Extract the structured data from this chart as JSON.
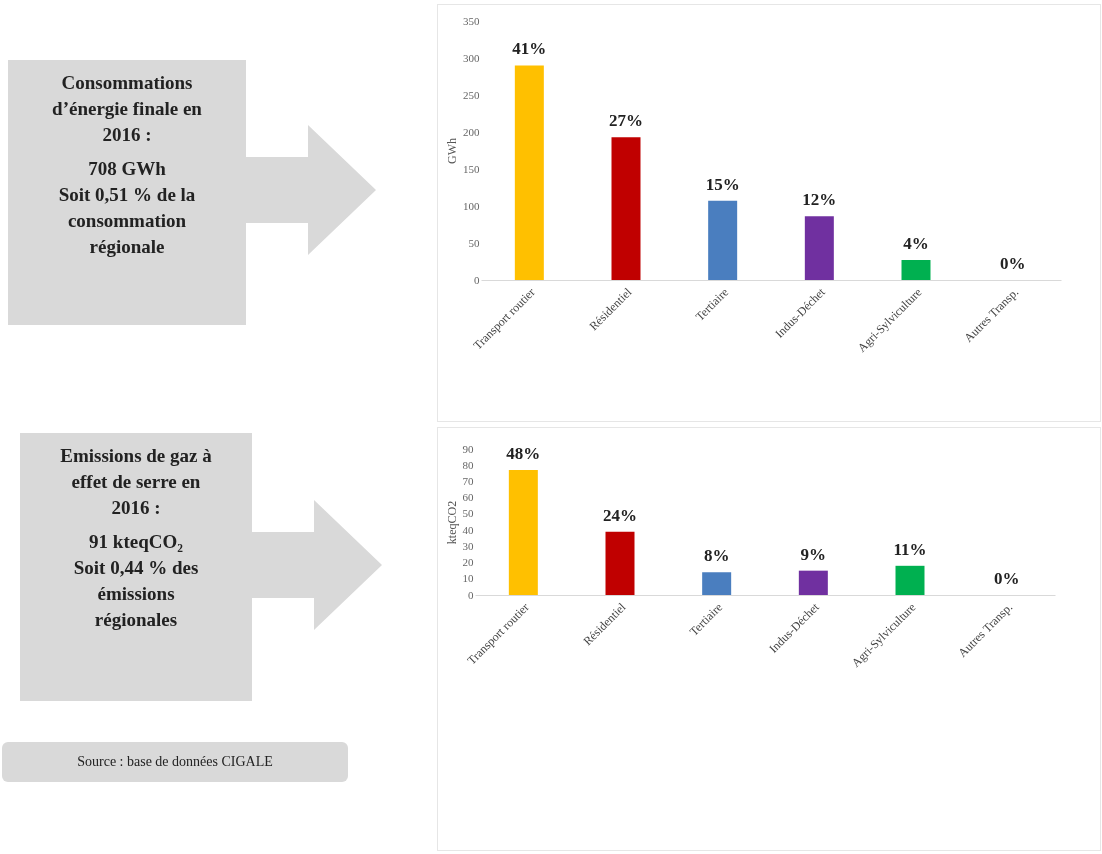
{
  "chart_data": [
    {
      "type": "bar",
      "ylabel": "GWh",
      "categories": [
        "Transport routier",
        "Résidentiel",
        "Tertiaire",
        "Indus-Déchet",
        "Agri-Sylviculture",
        "Autres Transp."
      ],
      "values": [
        290,
        193,
        107,
        86,
        27,
        0
      ],
      "colors": [
        "#ffc000",
        "#c00000",
        "#4a7ebf",
        "#7030a0",
        "#00b050",
        "#a5a5a5"
      ],
      "ylim": [
        0,
        350
      ],
      "yticks": [
        0,
        50,
        100,
        150,
        200,
        250,
        300,
        350
      ],
      "annotations": [
        "Consommations d’énergie finale en 2016 :",
        "708 GWh",
        "Soit 0,51 % de la consommation régionale",
        "Source : base de données CIGALE",
        {
          "text": "41%",
          "x": "Transport routier",
          "y": 290
        },
        {
          "text": "27%",
          "x": "Résidentiel",
          "y": 193
        },
        {
          "text": "15%",
          "x": "Tertiaire",
          "y": 107
        },
        {
          "text": "12%",
          "x": "Indus-Déchet",
          "y": 86
        },
        {
          "text": "4%",
          "x": "Agri-Sylviculture",
          "y": 27
        },
        {
          "text": "0%",
          "x": "Autres Transp.",
          "y": 0
        }
      ]
    },
    {
      "type": "bar",
      "ylabel": "kteqCO2",
      "categories": [
        "Transport routier",
        "Résidentiel",
        "Tertiaire",
        "Indus-Déchet",
        "Agri-Sylviculture",
        "Autres Transp."
      ],
      "values": [
        77,
        39,
        14,
        15,
        18,
        0
      ],
      "colors": [
        "#ffc000",
        "#c00000",
        "#4a7ebf",
        "#7030a0",
        "#00b050",
        "#a5a5a5"
      ],
      "ylim": [
        0,
        90
      ],
      "yticks": [
        0,
        10,
        20,
        30,
        40,
        50,
        60,
        70,
        80,
        90
      ],
      "annotations": [
        "Emissions de gaz à effet de serre en 2016 :",
        "91 kteqCO₂",
        "Soit 0,44 % des émissions régionales",
        {
          "text": "48%",
          "x": "Transport routier",
          "y": 77
        },
        {
          "text": "24%",
          "x": "Résidentiel",
          "y": 39
        },
        {
          "text": "8%",
          "x": "Tertiaire",
          "y": 14
        },
        {
          "text": "9%",
          "x": "Indus-Déchet",
          "y": 15
        },
        {
          "text": "11%",
          "x": "Agri-Sylviculture",
          "y": 18
        },
        {
          "text": "0%",
          "x": "Autres Transp.",
          "y": 0
        }
      ]
    }
  ]
}
